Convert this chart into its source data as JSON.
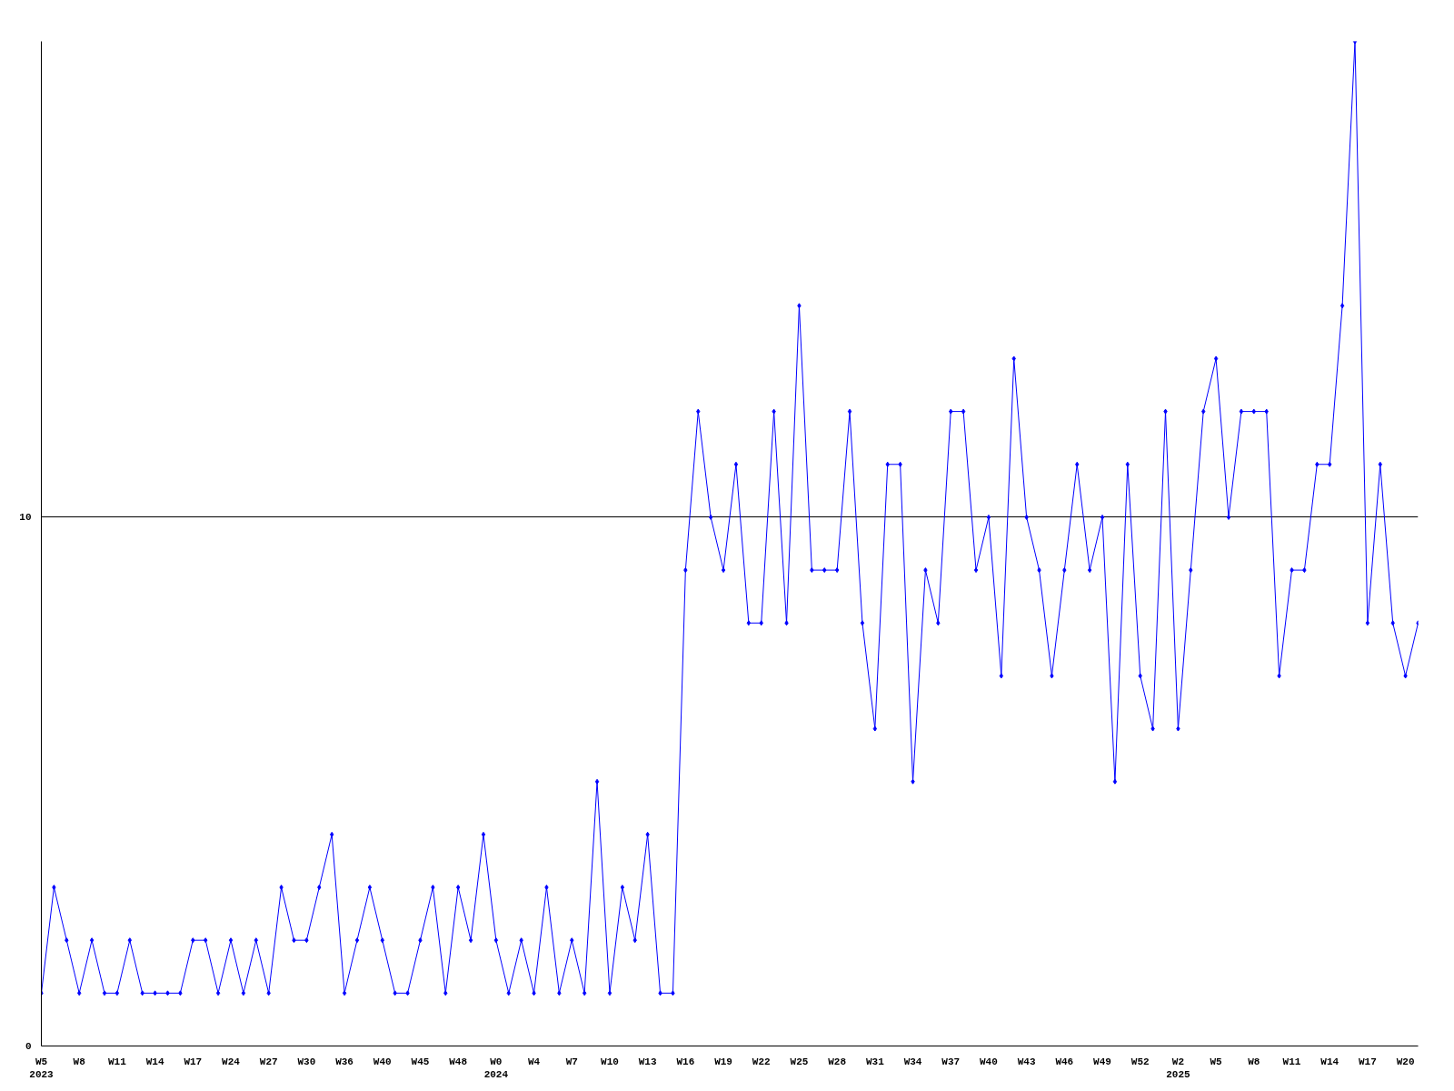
{
  "chart_data": {
    "type": "line",
    "categories": [
      "W5\n2023",
      null,
      null,
      "W8",
      null,
      null,
      "W11",
      null,
      null,
      "W14",
      null,
      null,
      "W17",
      null,
      null,
      "W24",
      null,
      null,
      "W27",
      null,
      null,
      "W30",
      null,
      null,
      "W36",
      null,
      null,
      "W40",
      null,
      null,
      "W45",
      null,
      null,
      "W48",
      null,
      null,
      "W0\n2024",
      null,
      null,
      "W4",
      null,
      null,
      "W7",
      null,
      null,
      "W10",
      null,
      null,
      "W13",
      null,
      null,
      "W16",
      null,
      null,
      "W19",
      null,
      null,
      "W22",
      null,
      null,
      "W25",
      null,
      null,
      "W28",
      null,
      null,
      "W31",
      null,
      null,
      "W34",
      null,
      null,
      "W37",
      null,
      null,
      "W40",
      null,
      null,
      "W43",
      null,
      null,
      "W46",
      null,
      null,
      "W49",
      null,
      null,
      "W52",
      null,
      null,
      "W2\n2025",
      null,
      null,
      "W5",
      null,
      null,
      "W8",
      null,
      null,
      "W11",
      null,
      null,
      "W14",
      null,
      null,
      "W17",
      null,
      null,
      "W20",
      null
    ],
    "series": [
      {
        "color": "#0000ff",
        "values": [
          1,
          3,
          2,
          1,
          2,
          1,
          1,
          2,
          1,
          1,
          1,
          1,
          2,
          2,
          1,
          2,
          1,
          2,
          1,
          3,
          2,
          2,
          3,
          4,
          1,
          2,
          3,
          2,
          1,
          1,
          2,
          3,
          1,
          3,
          2,
          4,
          2,
          1,
          2,
          1,
          3,
          1,
          2,
          1,
          5,
          1,
          3,
          2,
          4,
          1,
          1,
          9,
          12,
          10,
          9,
          11,
          8,
          8,
          12,
          8,
          14,
          9,
          9,
          9,
          12,
          8,
          6,
          11,
          11,
          5,
          9,
          8,
          12,
          12,
          9,
          10,
          7,
          13,
          10,
          9,
          7,
          9,
          11,
          9,
          10,
          5,
          11,
          7,
          6,
          12,
          6,
          9,
          12,
          13,
          10,
          12,
          12,
          12,
          7,
          9,
          9,
          11,
          11,
          14,
          19,
          8,
          11,
          8,
          7,
          8
        ]
      }
    ],
    "ylim": [
      0,
      19
    ],
    "yticks": [
      0,
      10
    ],
    "grid": "y",
    "marker": "diamond",
    "line_style": "solid"
  }
}
